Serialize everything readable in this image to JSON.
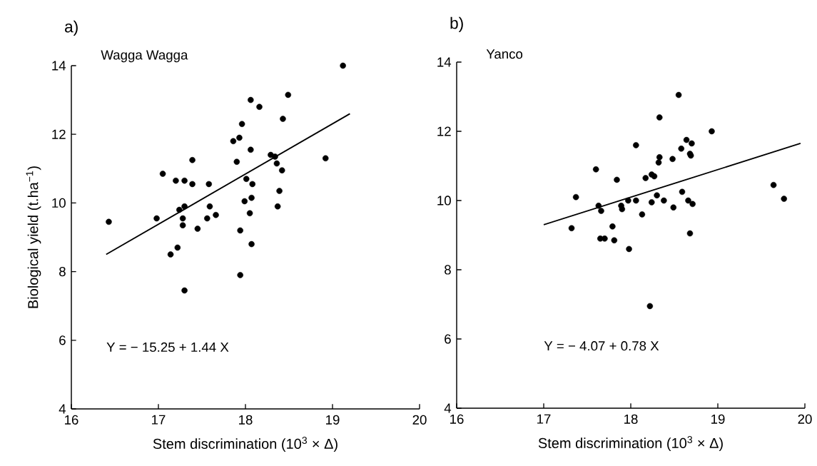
{
  "chart_data": [
    {
      "type": "scatter",
      "title": "a)",
      "subtitle": "Wagga Wagga",
      "xlabel": "Stem discrimination (10$^{3}$ × Δ)",
      "ylabel": "Biological yield (t.ha$^{−1}$)",
      "annotations": [
        "Y = − 15.25 + 1.44 X"
      ],
      "xlim": [
        16,
        20
      ],
      "ylim": [
        4,
        14
      ],
      "xticks": [
        16,
        17,
        18,
        19,
        20
      ],
      "yticks": [
        4,
        6,
        8,
        10,
        12,
        14
      ],
      "series": [
        {
          "color": "#000000",
          "marker": "circle",
          "x": [
            16.43,
            16.98,
            17.05,
            17.2,
            17.3,
            17.39,
            17.39,
            17.58,
            17.24,
            17.3,
            17.28,
            17.28,
            17.45,
            17.56,
            17.59,
            17.66,
            17.14,
            17.22,
            17.3,
            17.94,
            17.94,
            18.07,
            17.86,
            17.93,
            17.96,
            17.9,
            18.06,
            18.16,
            18.06,
            18.01,
            18.08,
            17.99,
            18.07,
            18.05,
            18.29,
            18.34,
            18.36,
            18.42,
            18.43,
            18.49,
            18.39,
            18.37,
            18.92,
            19.12
          ],
          "values": [
            9.45,
            9.55,
            10.85,
            10.65,
            10.65,
            10.55,
            11.25,
            10.55,
            9.8,
            9.9,
            9.55,
            9.35,
            9.25,
            9.55,
            9.9,
            9.65,
            8.5,
            8.7,
            7.45,
            7.9,
            9.2,
            8.8,
            11.8,
            11.9,
            12.3,
            11.2,
            13.0,
            12.8,
            11.55,
            10.7,
            10.55,
            10.05,
            10.15,
            9.7,
            11.4,
            11.35,
            11.15,
            10.95,
            12.45,
            13.15,
            10.35,
            9.9,
            11.3,
            14.0
          ]
        },
        {
          "type": "line",
          "marker": "none",
          "color": "#000000",
          "x": [
            16.4,
            19.2
          ],
          "values": [
            8.5,
            12.6
          ]
        }
      ]
    },
    {
      "type": "scatter",
      "title": "b)",
      "subtitle": "Yanco",
      "xlabel": "Stem discrimination (10$^{3}$ × Δ)",
      "annotations": [
        "Y = − 4.07 + 0.78 X"
      ],
      "xlim": [
        16,
        20
      ],
      "ylim": [
        4,
        14
      ],
      "xticks": [
        16,
        17,
        18,
        19,
        20
      ],
      "yticks": [
        4,
        6,
        8,
        10,
        12,
        14
      ],
      "series": [
        {
          "color": "#000000",
          "marker": "circle",
          "x": [
            17.32,
            17.37,
            17.6,
            17.63,
            17.66,
            17.84,
            17.79,
            17.65,
            17.7,
            17.81,
            17.98,
            17.89,
            17.9,
            17.97,
            18.06,
            18.06,
            18.13,
            18.17,
            18.24,
            18.27,
            18.24,
            18.3,
            18.33,
            18.33,
            18.32,
            18.38,
            18.48,
            18.49,
            18.55,
            18.58,
            18.59,
            18.64,
            18.7,
            18.68,
            18.69,
            18.66,
            18.71,
            18.68,
            18.93,
            19.64,
            19.76,
            18.22
          ],
          "values": [
            9.2,
            10.1,
            10.9,
            9.85,
            9.7,
            10.6,
            9.25,
            8.9,
            8.9,
            8.85,
            8.6,
            9.85,
            9.75,
            10.0,
            11.6,
            10.0,
            9.6,
            10.65,
            10.75,
            10.7,
            9.95,
            10.15,
            12.4,
            11.25,
            11.1,
            10.0,
            11.2,
            9.8,
            13.05,
            11.5,
            10.25,
            11.75,
            11.65,
            11.35,
            11.3,
            10.0,
            9.9,
            9.05,
            12.0,
            10.45,
            10.05,
            6.95
          ]
        },
        {
          "type": "line",
          "marker": "none",
          "color": "#000000",
          "x": [
            17.0,
            19.95
          ],
          "values": [
            9.3,
            11.65
          ]
        }
      ]
    }
  ]
}
